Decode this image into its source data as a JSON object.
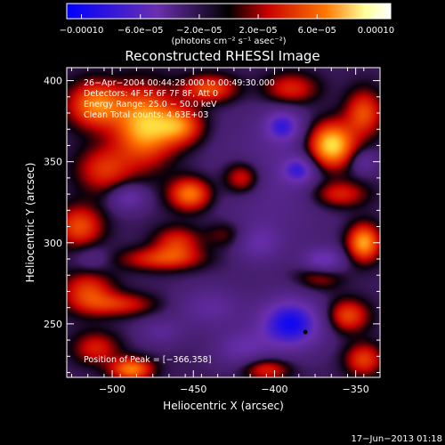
{
  "chart_data": {
    "type": "heatmap",
    "title": "Reconstructed RHESSI Image",
    "xlabel": "Heliocentric X (arcsec)",
    "ylabel": "Heliocentric Y (arcsec)",
    "xlim": [
      -528,
      -335
    ],
    "ylim": [
      217,
      408
    ],
    "x_ticks": [
      -500,
      -450,
      -400,
      -350
    ],
    "x_tick_labels": [
      "−500",
      "−450",
      "−400",
      "−350"
    ],
    "y_ticks": [
      250,
      300,
      350,
      400
    ],
    "y_tick_labels": [
      "250",
      "300",
      "350",
      "400"
    ],
    "colorbar": {
      "ticks": [
        -0.0001,
        -6e-05,
        -2e-05,
        2e-05,
        6e-05,
        0.0001
      ],
      "tick_labels": [
        "−0.00010",
        "−6.0e−05",
        "−2.0e−05",
        "2.0e−05",
        "6.0e−05",
        "0.00010"
      ],
      "units": "(photons cm⁻² s⁻¹ asec⁻²)",
      "colors": [
        "#0000ff",
        "#6a2fb0",
        "#000000",
        "#c80000",
        "#ff7800",
        "#ffff99",
        "#ffffff"
      ]
    },
    "annotations": [
      "26−Apr−2004 00:44:28.000 to 00:49:30.000",
      "Detectors: 4F 5F 6F 7F 8F, Att 0",
      "Energy Range: 25.0 − 50.0 keV",
      "Clean    Total counts: 4.63E+03"
    ],
    "peak_text": "Position of Peak = [−366,358]",
    "marker_point": {
      "x": -381,
      "y": 245
    },
    "peak_position": {
      "x": -366,
      "y": 358
    },
    "blobs": [
      {
        "x": -510,
        "y": 385,
        "sx": 12,
        "sy": 10,
        "v": 0.7
      },
      {
        "x": -480,
        "y": 372,
        "sx": 13,
        "sy": 16,
        "v": 0.85
      },
      {
        "x": -505,
        "y": 345,
        "sx": 12,
        "sy": 10,
        "v": 0.45
      },
      {
        "x": -520,
        "y": 310,
        "sx": 10,
        "sy": 9,
        "v": 0.55
      },
      {
        "x": -458,
        "y": 372,
        "sx": 10,
        "sy": 8,
        "v": 0.6
      },
      {
        "x": -440,
        "y": 395,
        "sx": 12,
        "sy": 6,
        "v": 0.55
      },
      {
        "x": -452,
        "y": 330,
        "sx": 9,
        "sy": 7,
        "v": 0.7
      },
      {
        "x": -460,
        "y": 300,
        "sx": 10,
        "sy": 7,
        "v": 0.45
      },
      {
        "x": -515,
        "y": 270,
        "sx": 11,
        "sy": 9,
        "v": 0.5
      },
      {
        "x": -470,
        "y": 290,
        "sx": 18,
        "sy": 5,
        "v": 0.45
      },
      {
        "x": -495,
        "y": 262,
        "sx": 15,
        "sy": 5,
        "v": 0.4
      },
      {
        "x": -510,
        "y": 235,
        "sx": 10,
        "sy": 7,
        "v": 0.4
      },
      {
        "x": -488,
        "y": 222,
        "sx": 9,
        "sy": 5,
        "v": 0.7
      },
      {
        "x": -420,
        "y": 340,
        "sx": 8,
        "sy": 7,
        "v": 0.5
      },
      {
        "x": -390,
        "y": 395,
        "sx": 12,
        "sy": 7,
        "v": 0.45
      },
      {
        "x": -365,
        "y": 360,
        "sx": 10,
        "sy": 10,
        "v": 1.0
      },
      {
        "x": -345,
        "y": 380,
        "sx": 8,
        "sy": 10,
        "v": 0.55
      },
      {
        "x": -360,
        "y": 330,
        "sx": 12,
        "sy": 6,
        "v": 0.45
      },
      {
        "x": -345,
        "y": 300,
        "sx": 7,
        "sy": 8,
        "v": 0.8
      },
      {
        "x": -372,
        "y": 280,
        "sx": 10,
        "sy": 6,
        "v": 0.4
      },
      {
        "x": -355,
        "y": 255,
        "sx": 9,
        "sy": 7,
        "v": 0.55
      },
      {
        "x": -345,
        "y": 228,
        "sx": 8,
        "sy": 7,
        "v": 0.5
      },
      {
        "x": -405,
        "y": 222,
        "sx": 10,
        "sy": 5,
        "v": 0.45
      },
      {
        "x": -430,
        "y": 305,
        "sx": 9,
        "sy": 6,
        "v": 0.25
      },
      {
        "x": -400,
        "y": 340,
        "sx": 25,
        "sy": 30,
        "v": -0.22
      },
      {
        "x": -390,
        "y": 250,
        "sx": 14,
        "sy": 11,
        "v": -0.8
      },
      {
        "x": -370,
        "y": 288,
        "sx": 9,
        "sy": 6,
        "v": -0.55
      },
      {
        "x": -395,
        "y": 372,
        "sx": 8,
        "sy": 7,
        "v": -0.55
      },
      {
        "x": -385,
        "y": 345,
        "sx": 7,
        "sy": 6,
        "v": -0.5
      },
      {
        "x": -490,
        "y": 328,
        "sx": 8,
        "sy": 6,
        "v": -0.4
      },
      {
        "x": -410,
        "y": 300,
        "sx": 10,
        "sy": 8,
        "v": -0.3
      },
      {
        "x": -420,
        "y": 235,
        "sx": 12,
        "sy": 8,
        "v": -0.35
      },
      {
        "x": -440,
        "y": 260,
        "sx": 14,
        "sy": 9,
        "v": -0.3
      },
      {
        "x": -345,
        "y": 350,
        "sx": 6,
        "sy": 5,
        "v": -0.3
      },
      {
        "x": -470,
        "y": 245,
        "sx": 10,
        "sy": 6,
        "v": -0.25
      },
      {
        "x": -512,
        "y": 290,
        "sx": 8,
        "sy": 6,
        "v": -0.2
      }
    ]
  },
  "footer": {
    "date": "17−Jun−2013 01:18"
  }
}
